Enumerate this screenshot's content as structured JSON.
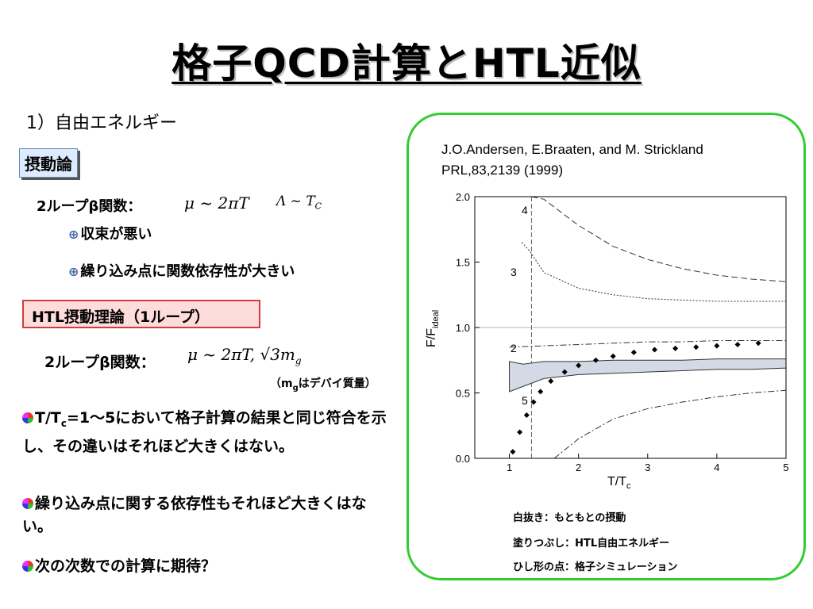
{
  "title": "格子QCD計算とHTL近似",
  "section": "1）自由エネルギー",
  "perturbation_label": "摂動論",
  "two_loop_label_1": "2ループβ関数：",
  "formula_1a": "μ ~ 2πT",
  "formula_1b": "Λ ~ T",
  "formula_1b_sub": "C",
  "bullets_small": [
    "収束が悪い",
    "繰り込み点に関数依存性が大きい"
  ],
  "htl_label": "HTL摂動理論（1ループ）",
  "two_loop_label_2": "2ループβ関数：",
  "formula_2": "μ ~ 2πT, √3m",
  "formula_2_sub": "g",
  "debye_note_pre": "（m",
  "debye_note_sub": "g",
  "debye_note_post": "はデバイ質量）",
  "para1": {
    "pre": "T/T",
    "sub": "c",
    "post": "=1～5において格子計算の結果と同じ符合を示し、その違いはそれほど大きくはない。"
  },
  "para2": "繰り込み点に関する依存性もそれほど大きくはない。",
  "para3": "次の次数での計算に期待？",
  "reference": [
    "J.O.Andersen, E.Braaten, and M. Strickland",
    "PRL,83,2139 (1999)"
  ],
  "captions": [
    "白抜き：もともとの摂動",
    "塗りつぶし：HTL自由エネルギー",
    "ひし形の点：格子シミュレーション"
  ],
  "chart_data": {
    "type": "line",
    "xlabel": "T/T",
    "xlabel_sub": "c",
    "ylabel": "F/F",
    "ylabel_sub": "ideal",
    "xlim": [
      0.5,
      5
    ],
    "ylim": [
      0,
      2
    ],
    "xticks": [
      "1",
      "2",
      "3",
      "4",
      "5"
    ],
    "yticks": [
      "0.0",
      "0.5",
      "1.0",
      "1.5",
      "2.0"
    ],
    "curve_labels": [
      "4",
      "3",
      "2",
      "5"
    ],
    "series": [
      {
        "name": "4",
        "style": "dashed",
        "x": [
          1.32,
          1.5,
          2,
          2.5,
          3,
          3.5,
          4,
          4.5,
          5
        ],
        "y": [
          2.0,
          1.98,
          1.78,
          1.62,
          1.52,
          1.45,
          1.4,
          1.37,
          1.35
        ]
      },
      {
        "name": "3",
        "style": "dotted",
        "x": [
          1.18,
          1.3,
          1.5,
          2,
          2.5,
          3,
          3.5,
          4,
          4.5,
          5
        ],
        "y": [
          1.65,
          1.58,
          1.42,
          1.3,
          1.25,
          1.22,
          1.21,
          1.2,
          1.2,
          1.2
        ]
      },
      {
        "name": "2",
        "style": "dashdot",
        "x": [
          1.0,
          1.5,
          2,
          2.5,
          3,
          3.5,
          4,
          4.5,
          5
        ],
        "y": [
          0.85,
          0.86,
          0.87,
          0.88,
          0.89,
          0.89,
          0.9,
          0.9,
          0.9
        ]
      },
      {
        "name": "5",
        "style": "dashdot",
        "x": [
          1.65,
          2,
          2.5,
          3,
          3.5,
          4,
          4.5,
          5
        ],
        "y": [
          0.0,
          0.15,
          0.3,
          0.38,
          0.43,
          0.47,
          0.5,
          0.52
        ]
      },
      {
        "name": "lattice",
        "style": "diamonds",
        "x": [
          1.05,
          1.15,
          1.25,
          1.35,
          1.45,
          1.6,
          1.8,
          2.0,
          2.25,
          2.5,
          2.8,
          3.1,
          3.4,
          3.7,
          4.0,
          4.3,
          4.6
        ],
        "y": [
          0.05,
          0.2,
          0.33,
          0.43,
          0.51,
          0.59,
          0.66,
          0.71,
          0.75,
          0.78,
          0.81,
          0.83,
          0.84,
          0.85,
          0.86,
          0.87,
          0.88
        ]
      }
    ],
    "htl_band": {
      "x": [
        1.0,
        1.2,
        1.5,
        2,
        2.5,
        3,
        3.5,
        4,
        4.5,
        5
      ],
      "low": [
        0.51,
        0.55,
        0.61,
        0.64,
        0.65,
        0.66,
        0.67,
        0.68,
        0.68,
        0.69
      ],
      "high": [
        0.74,
        0.72,
        0.74,
        0.74,
        0.75,
        0.75,
        0.75,
        0.76,
        0.76,
        0.76
      ]
    }
  }
}
